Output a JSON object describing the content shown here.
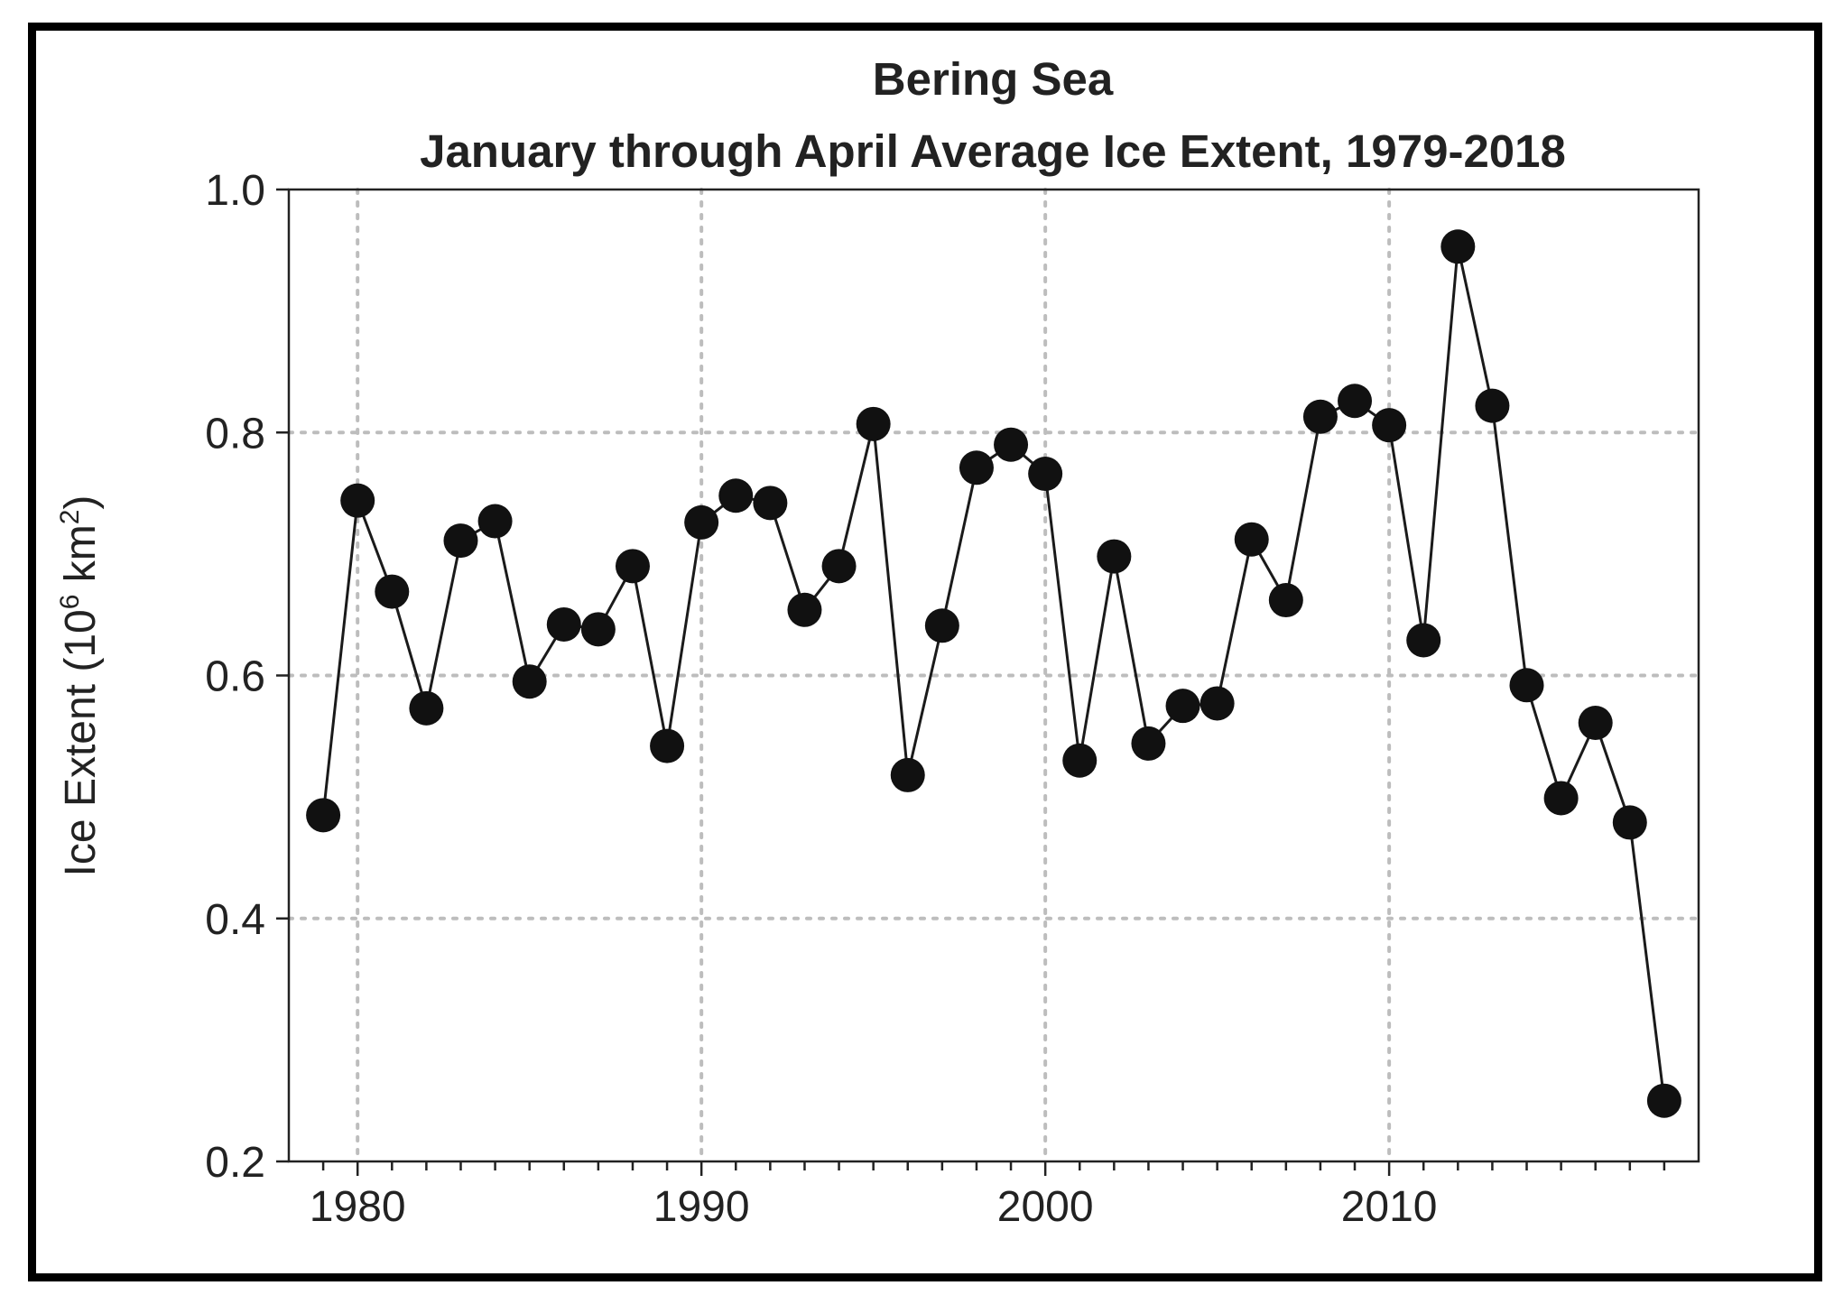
{
  "chart_data": {
    "type": "line",
    "title": "Bering Sea",
    "subtitle": "January through April Average Ice Extent, 1979-2018",
    "xlabel": "",
    "ylabel_parts": {
      "prefix": "Ice Extent (10",
      "exp1": "6",
      "middle": " km",
      "exp2": "2",
      "suffix": ")"
    },
    "xlim": [
      1978,
      2019
    ],
    "ylim": [
      0.2,
      1.0
    ],
    "xticks": [
      1980,
      1990,
      2000,
      2010
    ],
    "yticks": [
      0.2,
      0.4,
      0.6,
      0.8,
      1.0
    ],
    "ytick_labels": [
      "0.2",
      "0.4",
      "0.6",
      "0.8",
      "1.0"
    ],
    "xtick_labels": [
      "1980",
      "1990",
      "2000",
      "2010"
    ],
    "grid": "dotted",
    "marker": "filled-circle",
    "series": [
      {
        "name": "Ice Extent",
        "x": [
          1979,
          1980,
          1981,
          1982,
          1983,
          1984,
          1985,
          1986,
          1987,
          1988,
          1989,
          1990,
          1991,
          1992,
          1993,
          1994,
          1995,
          1996,
          1997,
          1998,
          1999,
          2000,
          2001,
          2002,
          2003,
          2004,
          2005,
          2006,
          2007,
          2008,
          2009,
          2010,
          2011,
          2012,
          2013,
          2014,
          2015,
          2016,
          2017,
          2018
        ],
        "y": [
          0.485,
          0.744,
          0.669,
          0.573,
          0.711,
          0.727,
          0.595,
          0.642,
          0.638,
          0.69,
          0.542,
          0.726,
          0.748,
          0.742,
          0.654,
          0.69,
          0.807,
          0.518,
          0.641,
          0.771,
          0.79,
          0.766,
          0.53,
          0.698,
          0.544,
          0.575,
          0.577,
          0.712,
          0.662,
          0.813,
          0.826,
          0.806,
          0.629,
          0.953,
          0.822,
          0.592,
          0.499,
          0.561,
          0.479,
          0.25
        ]
      }
    ]
  }
}
